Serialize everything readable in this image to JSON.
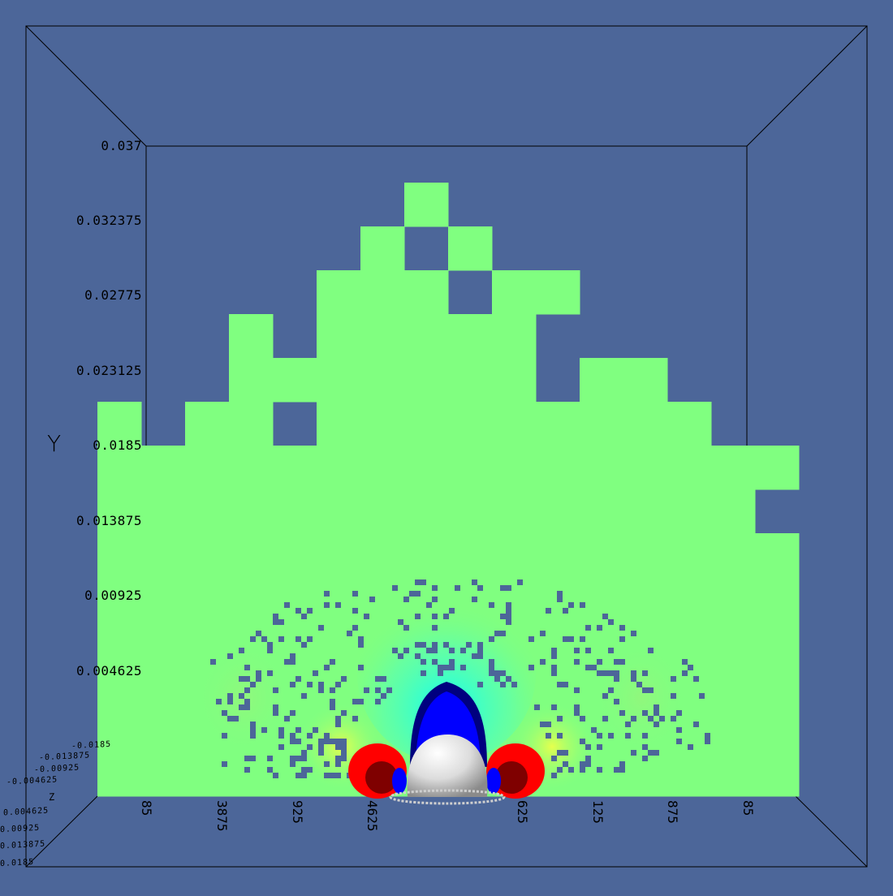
{
  "background_color": "#4c6699",
  "field_color": "#80ff80",
  "axes": {
    "y_title": "Y",
    "y_ticks": [
      "0.037",
      "0.032375",
      "0.02775",
      "0.023125",
      "0.0185",
      "0.013875",
      "0.00925",
      "0.004625"
    ],
    "x_ticks": [
      "85",
      "3875",
      "925",
      "4625",
      "625",
      "125",
      "875",
      "85"
    ],
    "z_title": "Z",
    "z_ticks": [
      "-0.0185",
      "-0.013875",
      "-0.00925",
      "-0.004625",
      "0.004625",
      "0.00925",
      "0.013875",
      "0.0185"
    ]
  },
  "colormap": [
    "#00007f",
    "#0000ff",
    "#00ffff",
    "#80ff80",
    "#ffff00",
    "#ff0000",
    "#7f0000"
  ],
  "object_color": "#e8e8e8"
}
